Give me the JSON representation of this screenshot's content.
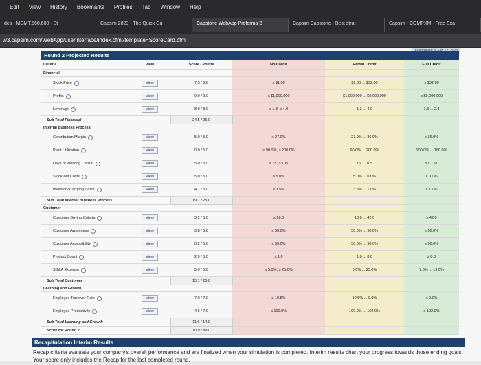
{
  "browser": {
    "menu": [
      "Edit",
      "View",
      "History",
      "Bookmarks",
      "Profiles",
      "Tab",
      "Window",
      "Help"
    ],
    "tabs": [
      "des - MGMT.560.600 - St",
      "Capsim 2023 - The Quick Gu",
      "Capstone WebApp Proforma B",
      "Capsim Capstone - Best strat",
      "Capsim - COMPXM - Free Exa"
    ],
    "url": "w3.capsim.com/WebApp/userinterface/index.cfm?template=ScoreCard.cfm"
  },
  "draft_note": "Draft saved at Feb 12, 2023",
  "table": {
    "title": "Round 2 Projected Results",
    "header": [
      "Criteria",
      "View",
      "Score / Points",
      "No Credit",
      "Partial Credit",
      "Full Credit"
    ],
    "rows": [
      {
        "section": "Financial"
      },
      {
        "criteria": "Stock Price",
        "view": "View",
        "score": "7.5 / 8.0",
        "no_credit": "≤ $1.00",
        "partial": "$1.00 ... $32.00",
        "full": "≥ $32.00"
      },
      {
        "criteria": "Profits",
        "view": "View",
        "score": "9.0 / 9.0",
        "no_credit": "≤ $1,000,000",
        "partial": "$1,000,000 ... $9,000,000",
        "full": "≥ $9,000,000"
      },
      {
        "criteria": "Leverage",
        "view": "View",
        "score": "8.0 / 8.0",
        "no_credit": "≤ 1.3, ≥ 4.0",
        "partial": "1.3 ... 4.0",
        "full": "1.8 ... 2.8"
      },
      {
        "subtotal": "Sub Total Financial",
        "score": "24.5 / 25.0"
      },
      {
        "section": "Internal Business Process"
      },
      {
        "criteria": "Contribution Margin",
        "view": "View",
        "score": "5.0 / 5.0",
        "no_credit": "≤ 27.0%",
        "partial": "27.0% ... 36.0%",
        "full": "≥ 36.0%"
      },
      {
        "criteria": "Plant Utilization",
        "view": "View",
        "score": "0.0 / 5.0",
        "no_credit": "≤ 90.0%, ≥ 200.0%",
        "partial": "90.0% ... 200.0%",
        "full": "100.0% ... 180.0%"
      },
      {
        "criteria": "Days of Working Capital",
        "view": "View",
        "score": "5.0 / 5.0",
        "no_credit": "≤ 15, ≥ 105",
        "partial": "15 ... 105",
        "full": "30 ... 90"
      },
      {
        "criteria": "Stock-out Costs",
        "view": "View",
        "score": "5.0 / 5.0",
        "no_credit": "≥ 5.0%",
        "partial": "5.0% ... 0.0%",
        "full": "≤ 0.0%"
      },
      {
        "criteria": "Inventory Carrying Costs",
        "view": "View",
        "score": "4.7 / 5.0",
        "no_credit": "≥ 3.5%",
        "partial": "3.5% ... 1.0%",
        "full": "≤ 1.0%"
      },
      {
        "subtotal": "Sub Total Internal Business Process",
        "score": "19.7 / 25.0"
      },
      {
        "section": "Customer"
      },
      {
        "criteria": "Customer Buying Criteria",
        "view": "View",
        "score": "3.2 / 5.0",
        "no_credit": "≤ 18.0",
        "partial": "18.0 ... 42.0",
        "full": "≥ 42.0"
      },
      {
        "criteria": "Customer Awareness",
        "view": "View",
        "score": "3.8 / 5.0",
        "no_credit": "≤ 50.0%",
        "partial": "50.0% ... 90.0%",
        "full": "≥ 90.0%"
      },
      {
        "criteria": "Customer Accessibility",
        "view": "View",
        "score": "0.2 / 5.0",
        "no_credit": "≤ 50.0%",
        "partial": "50.0% ... 90.0%",
        "full": "≥ 90.0%"
      },
      {
        "criteria": "Product Count",
        "view": "View",
        "score": "2.9 / 5.0",
        "no_credit": "≤ 1.0",
        "partial": "1.0 ... 8.0",
        "full": "≥ 8.0"
      },
      {
        "criteria": "SG&A Expense",
        "view": "View",
        "score": "5.0 / 5.0",
        "no_credit": "≤ 5.0%, ≥ 25.0%",
        "partial": "5.0% ... 25.0%",
        "full": "7.0% ... 19.0%"
      },
      {
        "subtotal": "Sub Total Customer",
        "score": "15.1 / 25.0"
      },
      {
        "section": "Learning and Growth"
      },
      {
        "criteria": "Employee Turnover Rate",
        "view": "View",
        "score": "7.0 / 7.0",
        "no_credit": "≥ 10.5%",
        "partial": "10.5% ... 9.0%",
        "full": "≤ 9.0%"
      },
      {
        "criteria": "Employee Productivity",
        "view": "View",
        "score": "4.6 / 7.0",
        "no_credit": "≤ 100.0%",
        "partial": "100.0% ... 102.0%",
        "full": "≥ 102.0%"
      },
      {
        "subtotal": "Sub Total Learning and Growth",
        "score": "11.6 / 14.0"
      },
      {
        "subtotal": "Score for Round 2",
        "score": "70.9 / 89.0"
      }
    ]
  },
  "recap": {
    "title": "Recapitulation Interim Results",
    "text": "Recap criteria evaluate your company's overall performance and are finalized when your simulation is completed. Interim results chart your progress towards those ending goals. Your score only includes the Recap for the last completed round."
  }
}
